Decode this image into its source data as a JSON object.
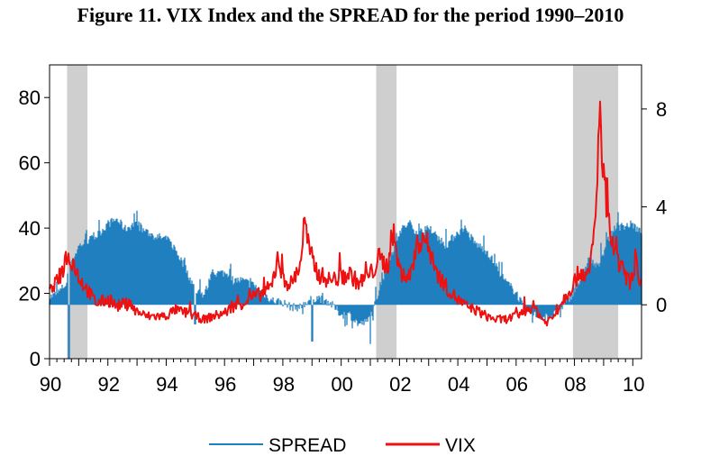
{
  "title": "Figure 11. VIX Index and the SPREAD for the period 1990–2010",
  "colors": {
    "spread": "#1f7fbf",
    "vix": "#ee1111",
    "recession": "#cfcfcf",
    "axis": "#000000"
  },
  "chart_data": {
    "type": "line",
    "title": "Figure 11. VIX Index and the SPREAD for the period 1990–2010",
    "xlim": [
      1990,
      2010.3
    ],
    "x_ticks": [
      {
        "value": 1990,
        "label": "90"
      },
      {
        "value": 1992,
        "label": "92"
      },
      {
        "value": 1994,
        "label": "94"
      },
      {
        "value": 1996,
        "label": "96"
      },
      {
        "value": 1998,
        "label": "98"
      },
      {
        "value": 2000,
        "label": "00"
      },
      {
        "value": 2002,
        "label": "02"
      },
      {
        "value": 2004,
        "label": "04"
      },
      {
        "value": 2006,
        "label": "06"
      },
      {
        "value": 2008,
        "label": "08"
      },
      {
        "value": 2010,
        "label": "10"
      }
    ],
    "left_axis": {
      "min": 0,
      "max": 90,
      "ticks": [
        0,
        20,
        40,
        60,
        80
      ]
    },
    "right_axis": {
      "min": -2.2,
      "max": 9.8,
      "ticks": [
        0,
        4,
        8
      ]
    },
    "recession_periods": [
      [
        1990.6,
        1991.3
      ],
      [
        2001.2,
        2001.9
      ],
      [
        2007.95,
        2009.5
      ]
    ],
    "legend": {
      "position": "bottom"
    },
    "series": [
      {
        "name": "SPREAD",
        "axis": "right",
        "style": "spiky-fill",
        "x": [
          1990.0,
          1990.3,
          1990.6,
          1990.8,
          1991.0,
          1991.3,
          1991.6,
          1992.0,
          1992.3,
          1992.6,
          1992.9,
          1993.3,
          1993.6,
          1994.0,
          1994.3,
          1994.7,
          1995.0,
          1995.3,
          1995.6,
          1996.0,
          1996.3,
          1996.6,
          1997.0,
          1997.3,
          1997.6,
          1998.0,
          1998.3,
          1998.6,
          1998.9,
          1999.2,
          1999.6,
          2000.0,
          2000.3,
          2000.6,
          2000.9,
          2001.1,
          2001.3,
          2001.6,
          2002.0,
          2002.3,
          2002.6,
          2003.0,
          2003.3,
          2003.6,
          2004.0,
          2004.3,
          2004.6,
          2005.0,
          2005.3,
          2005.6,
          2006.0,
          2006.3,
          2006.6,
          2007.0,
          2007.3,
          2007.6,
          2007.9,
          2008.2,
          2008.5,
          2008.8,
          2009.1,
          2009.4,
          2009.7,
          2010.0,
          2010.2
        ],
        "values": [
          0.3,
          0.5,
          0.9,
          1.8,
          2.4,
          2.6,
          2.8,
          3.3,
          3.5,
          3.1,
          3.3,
          3.0,
          2.8,
          2.7,
          2.3,
          1.4,
          0.6,
          0.4,
          1.3,
          1.3,
          1.0,
          1.0,
          0.8,
          0.5,
          0.2,
          0.1,
          -0.1,
          -0.1,
          0.2,
          0.3,
          0.1,
          -0.4,
          -0.4,
          -0.8,
          -0.7,
          -0.2,
          0.6,
          1.6,
          3.0,
          3.3,
          3.0,
          3.0,
          2.8,
          2.4,
          3.0,
          3.0,
          2.5,
          2.2,
          1.6,
          1.0,
          0.5,
          -0.2,
          -0.4,
          -0.5,
          -0.4,
          -0.1,
          0.4,
          1.0,
          1.9,
          1.5,
          2.5,
          3.2,
          3.2,
          3.3,
          3.0
        ],
        "dips": [
          {
            "x": 1990.65,
            "value": -2.2
          },
          {
            "x": 1999.0,
            "value": -1.5
          },
          {
            "x": 2001.0,
            "value": -1.6
          },
          {
            "x": 1995.0,
            "value": -0.8
          }
        ]
      },
      {
        "name": "VIX",
        "axis": "left",
        "x": [
          1990.0,
          1990.3,
          1990.6,
          1990.8,
          1991.0,
          1991.3,
          1991.6,
          1992.0,
          1992.3,
          1992.6,
          1992.9,
          1993.3,
          1993.6,
          1994.0,
          1994.3,
          1994.7,
          1995.0,
          1995.3,
          1995.6,
          1996.0,
          1996.3,
          1996.6,
          1997.0,
          1997.3,
          1997.6,
          1997.85,
          1998.0,
          1998.3,
          1998.6,
          1998.75,
          1998.9,
          1999.2,
          1999.6,
          2000.0,
          2000.3,
          2000.6,
          2000.9,
          2001.1,
          2001.3,
          2001.6,
          2001.75,
          2002.0,
          2002.3,
          2002.55,
          2002.8,
          2003.0,
          2003.3,
          2003.6,
          2004.0,
          2004.3,
          2004.6,
          2005.0,
          2005.3,
          2005.6,
          2006.0,
          2006.35,
          2006.6,
          2007.0,
          2007.3,
          2007.6,
          2007.9,
          2008.2,
          2008.5,
          2008.75,
          2008.85,
          2008.95,
          2009.1,
          2009.4,
          2009.7,
          2010.0,
          2010.1,
          2010.2
        ],
        "values": [
          20,
          24,
          31,
          30,
          25,
          21,
          17,
          18,
          16,
          17,
          15,
          13,
          13,
          13,
          15,
          14,
          13,
          12,
          13,
          14,
          16,
          17,
          19,
          20,
          22,
          31,
          24,
          23,
          29,
          43,
          33,
          26,
          24,
          25,
          26,
          23,
          25,
          27,
          31,
          28,
          40,
          27,
          24,
          33,
          38,
          34,
          26,
          22,
          18,
          16,
          15,
          13,
          12,
          12,
          13,
          15,
          16,
          11,
          13,
          18,
          22,
          27,
          25,
          45,
          80,
          60,
          44,
          31,
          26,
          22,
          33,
          22
        ]
      }
    ]
  }
}
